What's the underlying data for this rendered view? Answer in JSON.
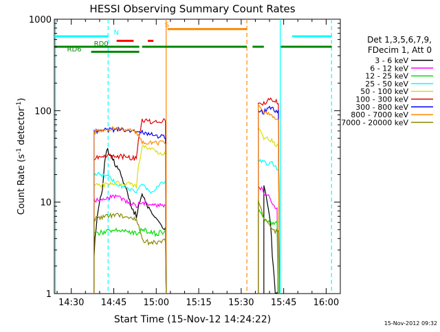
{
  "chart_data": {
    "type": "line",
    "title": "HESSI Observing Summary Count Rates",
    "xlabel": "Start Time (15-Nov-12 14:24:22)",
    "ylabel_main": "Count Rate (s",
    "ylabel_exp1": "-1",
    "ylabel_mid": " detector",
    "ylabel_exp2": "-1",
    "ylabel_close": ")",
    "yscale": "log",
    "ylim": [
      1,
      1000
    ],
    "xlim": [
      "14:24",
      "16:05"
    ],
    "xticks": [
      {
        "label": "14:30",
        "min": 30
      },
      {
        "label": "14:45",
        "min": 45
      },
      {
        "label": "15:00",
        "min": 60
      },
      {
        "label": "15:15",
        "min": 75
      },
      {
        "label": "15:30",
        "min": 90
      },
      {
        "label": "15:45",
        "min": 105
      },
      {
        "label": "16:00",
        "min": 120
      }
    ],
    "yticks": [
      {
        "label": "1",
        "value": 1
      },
      {
        "label": "10",
        "value": 10
      },
      {
        "label": "100",
        "value": 100
      },
      {
        "label": "1000",
        "value": 1000
      }
    ],
    "legend": {
      "position": "right",
      "header": [
        "Det 1,3,5,6,7,9,",
        "FDecim 1, Att 0"
      ],
      "entries": [
        {
          "label": "3 - 6 keV",
          "color": "#000000"
        },
        {
          "label": "6 - 12 keV",
          "color": "#ff00ff"
        },
        {
          "label": "12 - 25 keV",
          "color": "#00dd00"
        },
        {
          "label": "25 - 50 keV",
          "color": "#00ffff"
        },
        {
          "label": "50 - 100 keV",
          "color": "#dddd00"
        },
        {
          "label": "100 - 300 keV",
          "color": "#dd0000"
        },
        {
          "label": "300 - 800 keV",
          "color": "#0000ff"
        },
        {
          "label": "800 - 7000 keV",
          "color": "#ff8800"
        },
        {
          "label": "7000 - 20000 keV",
          "color": "#888800"
        }
      ]
    },
    "flags": [
      {
        "label": "N",
        "color": "#00ffff",
        "level": 650,
        "segments": [
          [
            24,
            43
          ],
          [
            108,
            122
          ]
        ]
      },
      {
        "label": "S",
        "color": "#ff8800",
        "level": 780,
        "segments": [
          [
            64,
            92
          ]
        ]
      },
      {
        "label": "",
        "color": "#ff0000",
        "level": 580,
        "segments": [
          [
            46,
            52
          ],
          [
            57,
            59
          ]
        ]
      },
      {
        "label": "RD0",
        "color": "#008800",
        "level": 500,
        "segments": [
          [
            24,
            54
          ],
          [
            55,
            92
          ],
          [
            94,
            98
          ],
          [
            104,
            122
          ]
        ]
      },
      {
        "label": "RD6",
        "color": "#008800",
        "level": 440,
        "segments": [
          [
            37,
            54
          ]
        ]
      }
    ],
    "flag_label_pos": [
      {
        "text": "N",
        "min": 45,
        "value": 680
      },
      {
        "text": "S",
        "min": 63,
        "value": 820
      },
      {
        "text": "RD0",
        "min": 38,
        "value": 510
      },
      {
        "text": "RD6",
        "min": 28.5,
        "value": 445
      }
    ],
    "vlines": [
      {
        "min": 24.4,
        "color": "#00ffff",
        "style": "solid"
      },
      {
        "min": 43,
        "color": "#00ffff",
        "style": "dashed"
      },
      {
        "min": 63.5,
        "color": "#ff8800",
        "style": "solid"
      },
      {
        "min": 92,
        "color": "#ff8800",
        "style": "dashed"
      },
      {
        "min": 103.8,
        "color": "#00ffff",
        "style": "solid"
      },
      {
        "min": 121.9,
        "color": "#00ffff",
        "style": "dashed"
      }
    ],
    "series": [
      {
        "name": "3 - 6 keV",
        "color": "#000000",
        "orbit1": [
          [
            38,
            2.5
          ],
          [
            41,
            14
          ],
          [
            42.5,
            38
          ],
          [
            45,
            28
          ],
          [
            48,
            18
          ],
          [
            51,
            9
          ],
          [
            53,
            7
          ],
          [
            55,
            12
          ],
          [
            57,
            9
          ],
          [
            59,
            7
          ],
          [
            61,
            6
          ],
          [
            63,
            5
          ],
          [
            63.5,
            0
          ]
        ],
        "orbit2": [
          [
            98,
            15
          ],
          [
            100,
            7
          ],
          [
            101,
            2.5
          ],
          [
            102,
            1
          ],
          [
            103,
            0
          ]
        ]
      },
      {
        "name": "6 - 12 keV",
        "color": "#ff00ff",
        "orbit1": [
          [
            38,
            10.5
          ],
          [
            42,
            11
          ],
          [
            46,
            11.5
          ],
          [
            50,
            10
          ],
          [
            53,
            9
          ],
          [
            55,
            10
          ],
          [
            58,
            9.5
          ],
          [
            61,
            9
          ],
          [
            63,
            9.5
          ],
          [
            63.5,
            0
          ]
        ],
        "orbit2": [
          [
            96,
            15
          ],
          [
            98,
            13
          ],
          [
            100,
            11
          ],
          [
            102,
            9
          ],
          [
            103,
            0
          ]
        ]
      },
      {
        "name": "12 - 25 keV",
        "color": "#00dd00",
        "orbit1": [
          [
            38,
            4.5
          ],
          [
            43,
            4.8
          ],
          [
            48,
            5
          ],
          [
            53,
            4.5
          ],
          [
            55,
            5
          ],
          [
            60,
            4.5
          ],
          [
            63,
            4.8
          ],
          [
            63.5,
            0
          ]
        ],
        "orbit2": [
          [
            96,
            8
          ],
          [
            99,
            6
          ],
          [
            102,
            6
          ],
          [
            103,
            0
          ]
        ]
      },
      {
        "name": "25 - 50 keV",
        "color": "#00ffff",
        "orbit1": [
          [
            38,
            20
          ],
          [
            42,
            20
          ],
          [
            46,
            16
          ],
          [
            50,
            14
          ],
          [
            53,
            13
          ],
          [
            55,
            16
          ],
          [
            58,
            13
          ],
          [
            61,
            15
          ],
          [
            63,
            17
          ],
          [
            63.5,
            0
          ]
        ],
        "orbit2": [
          [
            96,
            30
          ],
          [
            99,
            26
          ],
          [
            101,
            27
          ],
          [
            103,
            22
          ],
          [
            103.5,
            0
          ]
        ]
      },
      {
        "name": "50 - 100 keV",
        "color": "#dddd00",
        "orbit1": [
          [
            38,
            15
          ],
          [
            42,
            15.5
          ],
          [
            46,
            16
          ],
          [
            50,
            16
          ],
          [
            53,
            15
          ],
          [
            55,
            40
          ],
          [
            58,
            38
          ],
          [
            61,
            35
          ],
          [
            63,
            34
          ],
          [
            63.5,
            0
          ]
        ],
        "orbit2": [
          [
            96,
            68
          ],
          [
            98,
            48
          ],
          [
            100,
            50
          ],
          [
            102,
            42
          ],
          [
            103.5,
            0
          ]
        ]
      },
      {
        "name": "100 - 300 keV",
        "color": "#dd0000",
        "orbit1": [
          [
            38,
            30
          ],
          [
            42,
            32
          ],
          [
            46,
            32
          ],
          [
            50,
            31
          ],
          [
            53,
            30
          ],
          [
            55,
            78
          ],
          [
            58,
            76
          ],
          [
            61,
            74
          ],
          [
            63,
            80
          ],
          [
            63.5,
            0
          ]
        ],
        "orbit2": [
          [
            96,
            118
          ],
          [
            98,
            118
          ],
          [
            100,
            132
          ],
          [
            102,
            125
          ],
          [
            103.5,
            0
          ]
        ]
      },
      {
        "name": "300 - 800 keV",
        "color": "#0000ff",
        "orbit1": [
          [
            38,
            60
          ],
          [
            42,
            61
          ],
          [
            46,
            62
          ],
          [
            50,
            60
          ],
          [
            53,
            57
          ],
          [
            55,
            58
          ],
          [
            58,
            55
          ],
          [
            61,
            53
          ],
          [
            63,
            52
          ],
          [
            63.5,
            0
          ]
        ],
        "orbit2": [
          [
            96,
            100
          ],
          [
            98,
            97
          ],
          [
            100,
            110
          ],
          [
            102,
            100
          ],
          [
            103.5,
            0
          ]
        ]
      },
      {
        "name": "800 - 7000 keV",
        "color": "#ff8800",
        "orbit1": [
          [
            38,
            58
          ],
          [
            42,
            63
          ],
          [
            46,
            63
          ],
          [
            50,
            61
          ],
          [
            53,
            59
          ],
          [
            55,
            46
          ],
          [
            58,
            45
          ],
          [
            61,
            44
          ],
          [
            63,
            45
          ],
          [
            63.5,
            0
          ]
        ],
        "orbit2": [
          [
            96,
            110
          ],
          [
            98,
            96
          ],
          [
            100,
            90
          ],
          [
            102,
            82
          ],
          [
            103.5,
            0
          ]
        ]
      },
      {
        "name": "7000 - 20000 keV",
        "color": "#888800",
        "orbit1": [
          [
            38,
            6.5
          ],
          [
            42,
            7
          ],
          [
            46,
            7.2
          ],
          [
            50,
            7
          ],
          [
            53,
            6.5
          ],
          [
            55,
            3.8
          ],
          [
            58,
            3.6
          ],
          [
            61,
            3.7
          ],
          [
            63,
            3.8
          ],
          [
            63.5,
            0
          ]
        ],
        "orbit2": [
          [
            96,
            10
          ],
          [
            98,
            7
          ],
          [
            100,
            5.5
          ],
          [
            102,
            4.8
          ],
          [
            103.5,
            0
          ]
        ]
      }
    ]
  },
  "footer": {
    "timestamp": "15-Nov-2012 09:32"
  }
}
